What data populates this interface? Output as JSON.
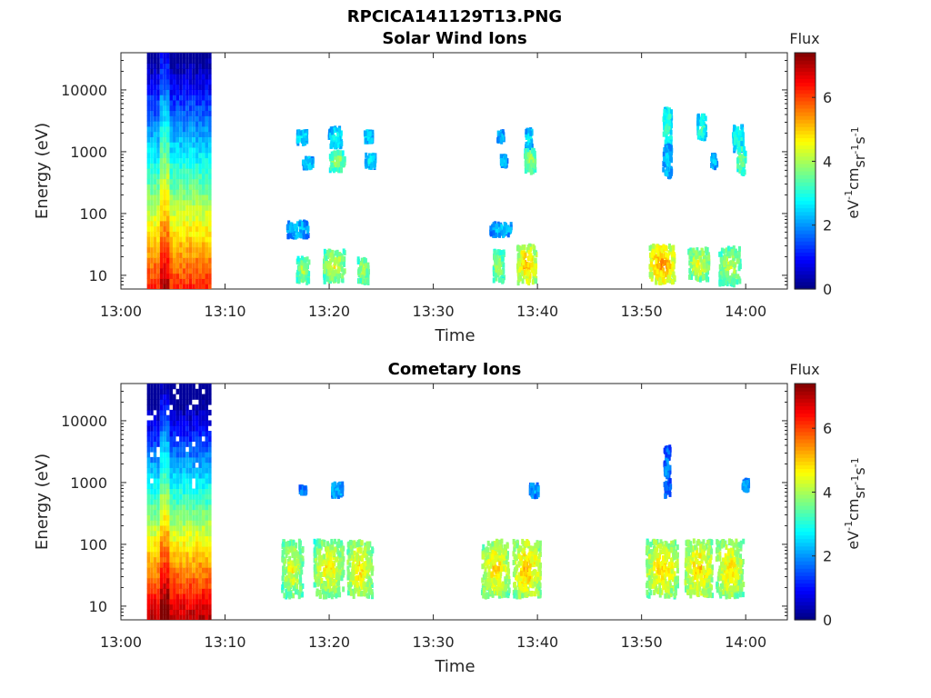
{
  "figure_title": "RPCICA141129T13.PNG",
  "chart_data": [
    {
      "type": "heatmap",
      "title": "Solar Wind Ions",
      "xlabel": "Time",
      "ylabel": "Energy (eV)",
      "y_scale": "log",
      "ylim": [
        6,
        40000
      ],
      "xlim_minutes": [
        0,
        64
      ],
      "x_tick_labels": [
        "13:00",
        "13:10",
        "13:20",
        "13:30",
        "13:40",
        "13:50",
        "14:00"
      ],
      "x_tick_minutes": [
        0,
        10,
        20,
        30,
        40,
        50,
        60
      ],
      "y_tick_labels": [
        "10",
        "100",
        "1000",
        "10000"
      ],
      "y_tick_values": [
        10,
        100,
        1000,
        10000
      ],
      "colorbar": {
        "label": "Flux",
        "units_label": "eV-1cm-2sr-1s-1",
        "range": [
          0,
          7.4
        ],
        "tick_labels": [
          "0",
          "2",
          "4",
          "6"
        ],
        "tick_values": [
          0,
          2,
          4,
          6
        ],
        "colormap": "jet"
      },
      "background_block": {
        "t_start_min": 2.5,
        "t_end_min": 8.7
      },
      "clusters": [
        {
          "t_min": 17.4,
          "energy_eV": 1700,
          "flux": 3.0,
          "spread_min": 0.5,
          "spread_dex": 0.1
        },
        {
          "t_min": 18.0,
          "energy_eV": 650,
          "flux": 2.8,
          "spread_min": 0.5,
          "spread_dex": 0.08
        },
        {
          "t_min": 20.6,
          "energy_eV": 1700,
          "flux": 3.0,
          "spread_min": 0.6,
          "spread_dex": 0.15
        },
        {
          "t_min": 20.8,
          "energy_eV": 700,
          "flux": 4.2,
          "spread_min": 0.7,
          "spread_dex": 0.15
        },
        {
          "t_min": 23.8,
          "energy_eV": 1750,
          "flux": 3.0,
          "spread_min": 0.4,
          "spread_dex": 0.08
        },
        {
          "t_min": 24.0,
          "energy_eV": 700,
          "flux": 2.8,
          "spread_min": 0.5,
          "spread_dex": 0.1
        },
        {
          "t_min": 36.5,
          "energy_eV": 1750,
          "flux": 2.6,
          "spread_min": 0.3,
          "spread_dex": 0.08
        },
        {
          "t_min": 36.8,
          "energy_eV": 700,
          "flux": 2.6,
          "spread_min": 0.3,
          "spread_dex": 0.08
        },
        {
          "t_min": 39.2,
          "energy_eV": 1600,
          "flux": 3.0,
          "spread_min": 0.3,
          "spread_dex": 0.15
        },
        {
          "t_min": 39.3,
          "energy_eV": 700,
          "flux": 4.2,
          "spread_min": 0.5,
          "spread_dex": 0.18
        },
        {
          "t_min": 52.5,
          "energy_eV": 2500,
          "flux": 3.5,
          "spread_min": 0.4,
          "spread_dex": 0.3
        },
        {
          "t_min": 52.5,
          "energy_eV": 700,
          "flux": 2.6,
          "spread_min": 0.4,
          "spread_dex": 0.25
        },
        {
          "t_min": 55.8,
          "energy_eV": 2500,
          "flux": 3.4,
          "spread_min": 0.4,
          "spread_dex": 0.2
        },
        {
          "t_min": 57.0,
          "energy_eV": 700,
          "flux": 2.6,
          "spread_min": 0.3,
          "spread_dex": 0.1
        },
        {
          "t_min": 59.3,
          "energy_eV": 1600,
          "flux": 3.2,
          "spread_min": 0.5,
          "spread_dex": 0.2
        },
        {
          "t_min": 59.6,
          "energy_eV": 700,
          "flux": 4.0,
          "spread_min": 0.4,
          "spread_dex": 0.2
        },
        {
          "t_min": 17.5,
          "energy_eV": 12,
          "flux": 4.3,
          "spread_min": 0.6,
          "spread_dex": 0.2
        },
        {
          "t_min": 17.0,
          "energy_eV": 55,
          "flux": 2.6,
          "spread_min": 1.0,
          "spread_dex": 0.12
        },
        {
          "t_min": 20.5,
          "energy_eV": 14,
          "flux": 4.6,
          "spread_min": 1.0,
          "spread_dex": 0.25
        },
        {
          "t_min": 23.3,
          "energy_eV": 12,
          "flux": 4.4,
          "spread_min": 0.5,
          "spread_dex": 0.2
        },
        {
          "t_min": 36.3,
          "energy_eV": 14,
          "flux": 4.2,
          "spread_min": 0.5,
          "spread_dex": 0.25
        },
        {
          "t_min": 36.5,
          "energy_eV": 55,
          "flux": 2.6,
          "spread_min": 1.0,
          "spread_dex": 0.1
        },
        {
          "t_min": 39.0,
          "energy_eV": 15,
          "flux": 5.3,
          "spread_min": 0.9,
          "spread_dex": 0.3
        },
        {
          "t_min": 52.0,
          "energy_eV": 15,
          "flux": 5.6,
          "spread_min": 1.2,
          "spread_dex": 0.3
        },
        {
          "t_min": 55.5,
          "energy_eV": 15,
          "flux": 4.6,
          "spread_min": 1.0,
          "spread_dex": 0.25
        },
        {
          "t_min": 58.5,
          "energy_eV": 14,
          "flux": 4.4,
          "spread_min": 1.0,
          "spread_dex": 0.3
        }
      ]
    },
    {
      "type": "heatmap",
      "title": "Cometary Ions",
      "xlabel": "Time",
      "ylabel": "Energy (eV)",
      "y_scale": "log",
      "ylim": [
        6,
        40000
      ],
      "xlim_minutes": [
        0,
        64
      ],
      "x_tick_labels": [
        "13:00",
        "13:10",
        "13:20",
        "13:30",
        "13:40",
        "13:50",
        "14:00"
      ],
      "x_tick_minutes": [
        0,
        10,
        20,
        30,
        40,
        50,
        60
      ],
      "y_tick_labels": [
        "10",
        "100",
        "1000",
        "10000"
      ],
      "y_tick_values": [
        10,
        100,
        1000,
        10000
      ],
      "colorbar": {
        "label": "Flux",
        "units_label": "eV-1cm-2sr-1s-1",
        "range": [
          0,
          7.4
        ],
        "tick_labels": [
          "0",
          "2",
          "4",
          "6"
        ],
        "tick_values": [
          0,
          2,
          4,
          6
        ],
        "colormap": "jet"
      },
      "background_block": {
        "t_start_min": 2.5,
        "t_end_min": 8.7
      },
      "clusters": [
        {
          "t_min": 20.8,
          "energy_eV": 750,
          "flux": 2.6,
          "spread_min": 0.5,
          "spread_dex": 0.1
        },
        {
          "t_min": 17.5,
          "energy_eV": 750,
          "flux": 2.2,
          "spread_min": 0.3,
          "spread_dex": 0.05
        },
        {
          "t_min": 39.7,
          "energy_eV": 750,
          "flux": 2.4,
          "spread_min": 0.4,
          "spread_dex": 0.1
        },
        {
          "t_min": 52.5,
          "energy_eV": 1500,
          "flux": 2.0,
          "spread_min": 0.3,
          "spread_dex": 0.4
        },
        {
          "t_min": 60.0,
          "energy_eV": 900,
          "flux": 2.4,
          "spread_min": 0.3,
          "spread_dex": 0.08
        },
        {
          "t_min": 16.5,
          "energy_eV": 40,
          "flux": 4.6,
          "spread_min": 1.0,
          "spread_dex": 0.45
        },
        {
          "t_min": 20.0,
          "energy_eV": 40,
          "flux": 4.8,
          "spread_min": 1.4,
          "spread_dex": 0.45
        },
        {
          "t_min": 23.0,
          "energy_eV": 40,
          "flux": 4.9,
          "spread_min": 1.2,
          "spread_dex": 0.45
        },
        {
          "t_min": 36.0,
          "energy_eV": 40,
          "flux": 5.0,
          "spread_min": 1.3,
          "spread_dex": 0.45
        },
        {
          "t_min": 39.0,
          "energy_eV": 40,
          "flux": 5.2,
          "spread_min": 1.3,
          "spread_dex": 0.45
        },
        {
          "t_min": 52.0,
          "energy_eV": 40,
          "flux": 5.0,
          "spread_min": 1.5,
          "spread_dex": 0.45
        },
        {
          "t_min": 55.5,
          "energy_eV": 40,
          "flux": 5.1,
          "spread_min": 1.3,
          "spread_dex": 0.45
        },
        {
          "t_min": 58.5,
          "energy_eV": 40,
          "flux": 4.9,
          "spread_min": 1.3,
          "spread_dex": 0.45
        }
      ]
    }
  ]
}
